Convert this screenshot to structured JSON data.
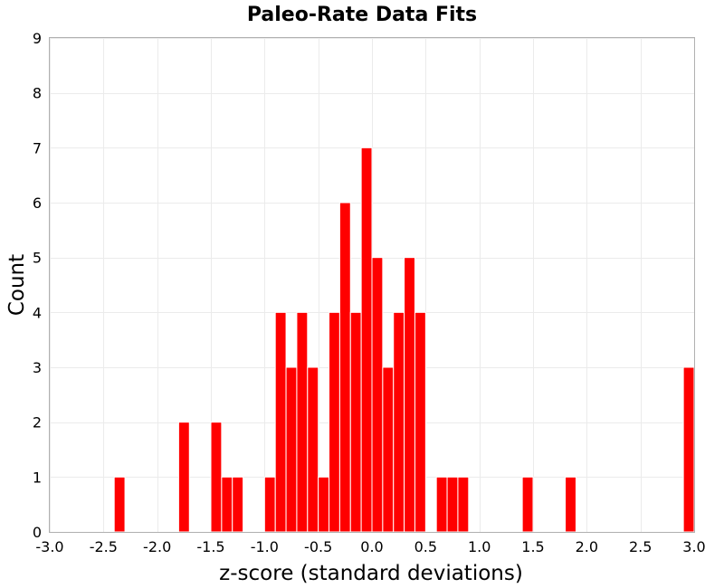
{
  "chart_data": {
    "type": "bar",
    "title": "Paleo-Rate Data Fits",
    "xlabel": "z-score (standard deviations)",
    "ylabel": "Count",
    "xlim": [
      -3.0,
      3.0
    ],
    "ylim": [
      0,
      9
    ],
    "bin_width": 0.1,
    "x_ticks": [
      "-3.0",
      "-2.5",
      "-2.0",
      "-1.5",
      "-1.0",
      "-0.5",
      "0.0",
      "0.5",
      "1.0",
      "1.5",
      "2.0",
      "2.5",
      "3.0"
    ],
    "y_ticks": [
      "0",
      "1",
      "2",
      "3",
      "4",
      "5",
      "6",
      "7",
      "8",
      "9"
    ],
    "grid": true,
    "color": "#ff0000",
    "bins": [
      {
        "x": -2.4,
        "count": 1
      },
      {
        "x": -1.8,
        "count": 2
      },
      {
        "x": -1.5,
        "count": 2
      },
      {
        "x": -1.4,
        "count": 1
      },
      {
        "x": -1.3,
        "count": 1
      },
      {
        "x": -1.0,
        "count": 1
      },
      {
        "x": -0.9,
        "count": 4
      },
      {
        "x": -0.8,
        "count": 3
      },
      {
        "x": -0.7,
        "count": 4
      },
      {
        "x": -0.6,
        "count": 3
      },
      {
        "x": -0.5,
        "count": 1
      },
      {
        "x": -0.4,
        "count": 4
      },
      {
        "x": -0.3,
        "count": 6
      },
      {
        "x": -0.2,
        "count": 4
      },
      {
        "x": -0.1,
        "count": 7
      },
      {
        "x": 0.0,
        "count": 5
      },
      {
        "x": 0.1,
        "count": 3
      },
      {
        "x": 0.2,
        "count": 4
      },
      {
        "x": 0.3,
        "count": 5
      },
      {
        "x": 0.4,
        "count": 4
      },
      {
        "x": 0.6,
        "count": 1
      },
      {
        "x": 0.7,
        "count": 1
      },
      {
        "x": 0.8,
        "count": 1
      },
      {
        "x": 1.4,
        "count": 1
      },
      {
        "x": 1.8,
        "count": 1
      },
      {
        "x": 2.9,
        "count": 3
      }
    ]
  }
}
